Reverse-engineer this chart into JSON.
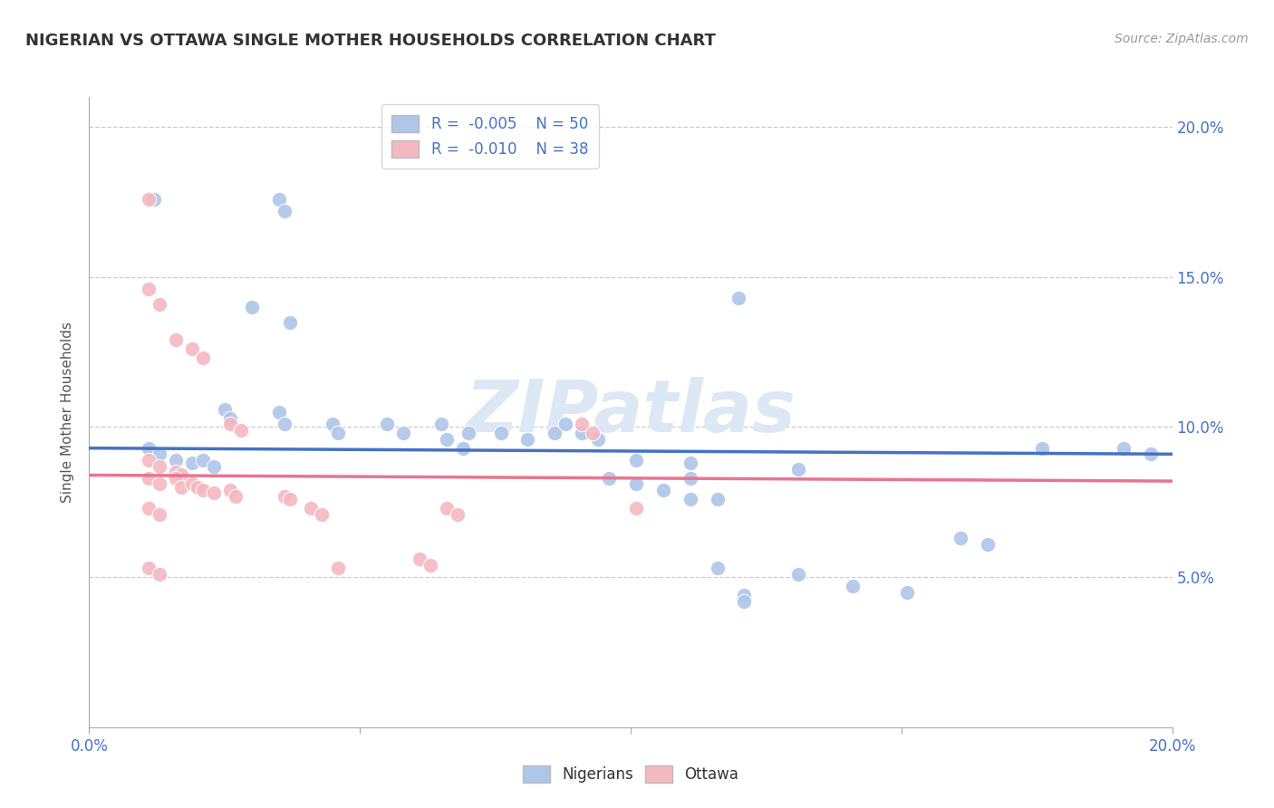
{
  "title": "NIGERIAN VS OTTAWA SINGLE MOTHER HOUSEHOLDS CORRELATION CHART",
  "source": "Source: ZipAtlas.com",
  "ylabel": "Single Mother Households",
  "xlim": [
    0.0,
    0.2
  ],
  "ylim": [
    0.0,
    0.21
  ],
  "yticks": [
    0.0,
    0.05,
    0.1,
    0.15,
    0.2
  ],
  "right_ytick_labels": [
    "",
    "5.0%",
    "10.0%",
    "15.0%",
    "20.0%"
  ],
  "xticks": [
    0.0,
    0.05,
    0.1,
    0.15,
    0.2
  ],
  "xtick_labels": [
    "0.0%",
    "",
    "",
    "",
    "20.0%"
  ],
  "legend_top_entries": [
    {
      "label_r": "R = ",
      "val_r": "-0.005",
      "label_n": "   N = ",
      "val_n": "50",
      "color": "#aec6e8"
    },
    {
      "label_r": "R = ",
      "val_r": "-0.010",
      "label_n": "   N = ",
      "val_n": "38",
      "color": "#f4b8c1"
    }
  ],
  "legend_bottom": [
    {
      "label": "Nigerians",
      "color": "#aec6e8"
    },
    {
      "label": "Ottawa",
      "color": "#f4b8c1"
    }
  ],
  "watermark": "ZIPatlas",
  "blue_color": "#4472c4",
  "pink_color": "#e8758e",
  "scatter_blue_color": "#aec6e8",
  "scatter_pink_color": "#f4b8c1",
  "trendline_blue": {
    "x": [
      0.0,
      0.2
    ],
    "y": [
      0.093,
      0.091
    ]
  },
  "trendline_pink": {
    "x": [
      0.0,
      0.2
    ],
    "y": [
      0.084,
      0.082
    ]
  },
  "nigerian_points": [
    [
      0.012,
      0.176
    ],
    [
      0.035,
      0.176
    ],
    [
      0.036,
      0.172
    ],
    [
      0.03,
      0.14
    ],
    [
      0.037,
      0.135
    ],
    [
      0.12,
      0.143
    ],
    [
      0.025,
      0.106
    ],
    [
      0.026,
      0.103
    ],
    [
      0.035,
      0.105
    ],
    [
      0.036,
      0.101
    ],
    [
      0.045,
      0.101
    ],
    [
      0.046,
      0.098
    ],
    [
      0.055,
      0.101
    ],
    [
      0.058,
      0.098
    ],
    [
      0.065,
      0.101
    ],
    [
      0.07,
      0.098
    ],
    [
      0.076,
      0.098
    ],
    [
      0.081,
      0.096
    ],
    [
      0.086,
      0.098
    ],
    [
      0.088,
      0.101
    ],
    [
      0.091,
      0.098
    ],
    [
      0.094,
      0.096
    ],
    [
      0.066,
      0.096
    ],
    [
      0.069,
      0.093
    ],
    [
      0.011,
      0.093
    ],
    [
      0.013,
      0.091
    ],
    [
      0.016,
      0.089
    ],
    [
      0.019,
      0.088
    ],
    [
      0.021,
      0.089
    ],
    [
      0.023,
      0.087
    ],
    [
      0.101,
      0.089
    ],
    [
      0.111,
      0.088
    ],
    [
      0.111,
      0.083
    ],
    [
      0.176,
      0.093
    ],
    [
      0.116,
      0.076
    ],
    [
      0.131,
      0.086
    ],
    [
      0.096,
      0.083
    ],
    [
      0.101,
      0.081
    ],
    [
      0.106,
      0.079
    ],
    [
      0.111,
      0.076
    ],
    [
      0.116,
      0.053
    ],
    [
      0.131,
      0.051
    ],
    [
      0.141,
      0.047
    ],
    [
      0.151,
      0.045
    ],
    [
      0.121,
      0.044
    ],
    [
      0.121,
      0.042
    ],
    [
      0.191,
      0.093
    ],
    [
      0.196,
      0.091
    ],
    [
      0.161,
      0.063
    ],
    [
      0.166,
      0.061
    ]
  ],
  "ottawa_points": [
    [
      0.011,
      0.176
    ],
    [
      0.011,
      0.146
    ],
    [
      0.013,
      0.141
    ],
    [
      0.016,
      0.129
    ],
    [
      0.019,
      0.126
    ],
    [
      0.021,
      0.123
    ],
    [
      0.026,
      0.101
    ],
    [
      0.028,
      0.099
    ],
    [
      0.011,
      0.089
    ],
    [
      0.013,
      0.087
    ],
    [
      0.016,
      0.085
    ],
    [
      0.017,
      0.084
    ],
    [
      0.011,
      0.083
    ],
    [
      0.013,
      0.081
    ],
    [
      0.016,
      0.083
    ],
    [
      0.017,
      0.08
    ],
    [
      0.019,
      0.081
    ],
    [
      0.02,
      0.08
    ],
    [
      0.021,
      0.079
    ],
    [
      0.023,
      0.078
    ],
    [
      0.026,
      0.079
    ],
    [
      0.027,
      0.077
    ],
    [
      0.036,
      0.077
    ],
    [
      0.037,
      0.076
    ],
    [
      0.011,
      0.073
    ],
    [
      0.013,
      0.071
    ],
    [
      0.041,
      0.073
    ],
    [
      0.043,
      0.071
    ],
    [
      0.066,
      0.073
    ],
    [
      0.068,
      0.071
    ],
    [
      0.091,
      0.101
    ],
    [
      0.093,
      0.098
    ],
    [
      0.101,
      0.073
    ],
    [
      0.061,
      0.056
    ],
    [
      0.063,
      0.054
    ],
    [
      0.011,
      0.053
    ],
    [
      0.013,
      0.051
    ],
    [
      0.046,
      0.053
    ]
  ]
}
